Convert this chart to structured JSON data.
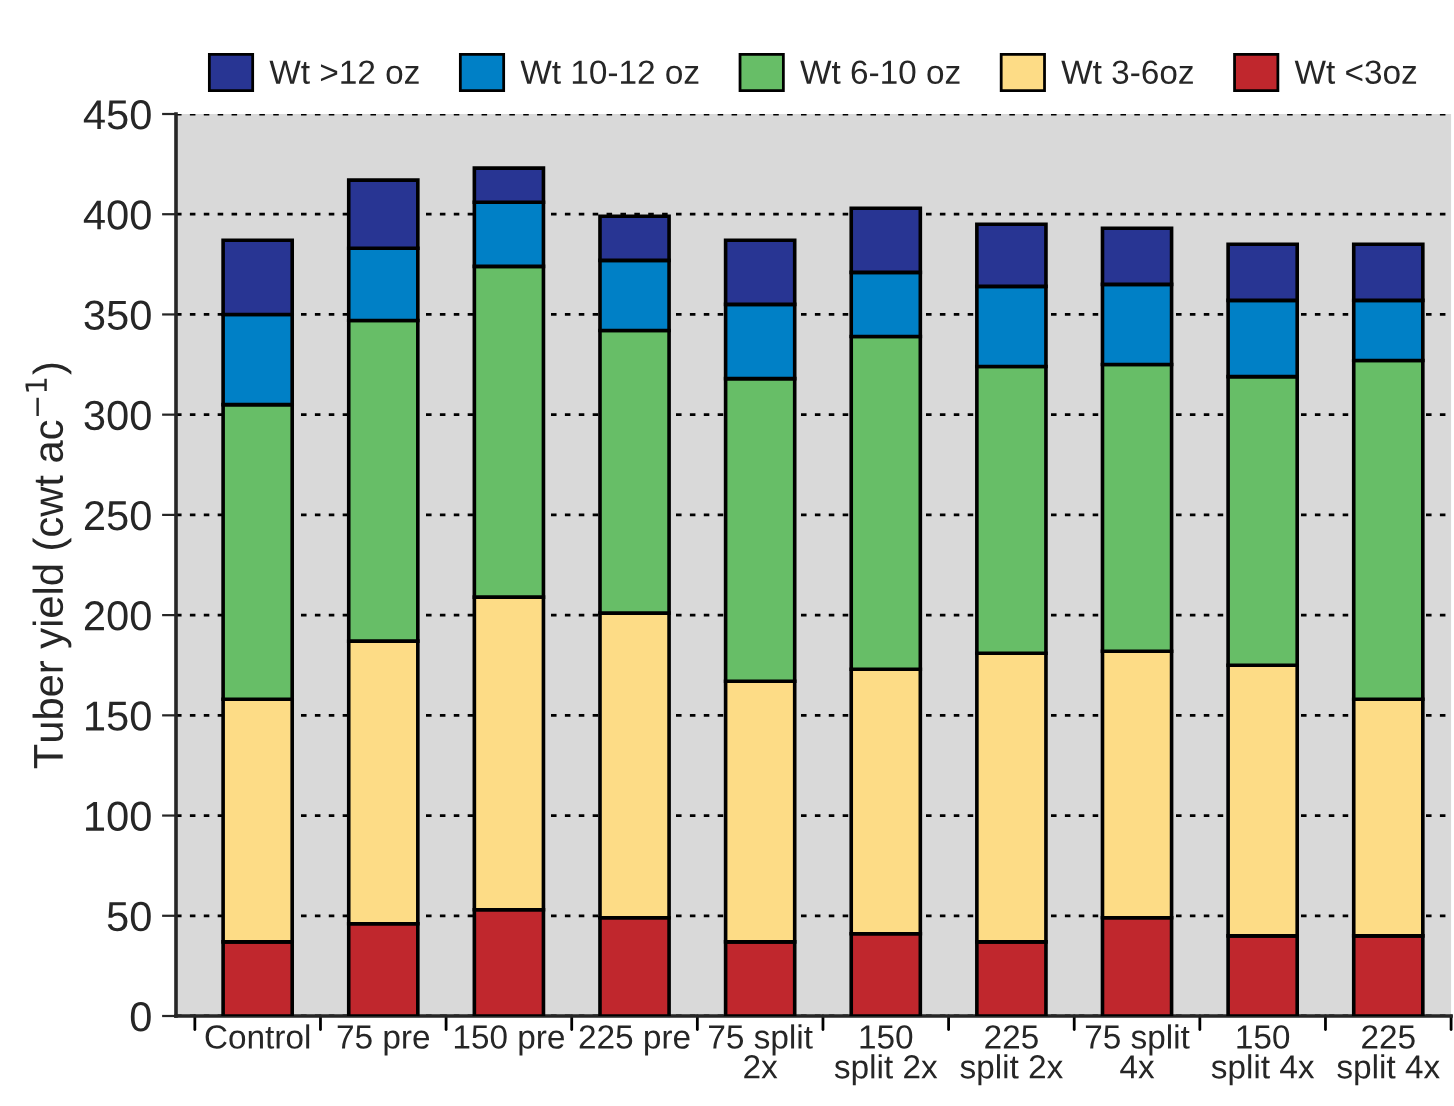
{
  "chart_data": {
    "type": "bar",
    "stacked": true,
    "ylabel": "Tuber yield (cwt ac$^{−1}$)",
    "categories": [
      "Control",
      "75 pre",
      "150 pre",
      "225 pre",
      "75 split\n2x",
      "150\nsplit 2x",
      "225\nsplit 2x",
      "75 split\n4x",
      "150\nsplit 4x",
      "225\nsplit 4x"
    ],
    "series": [
      {
        "name": "Wt <3oz",
        "color": "#c0272d",
        "values": [
          37,
          46,
          53,
          49,
          37,
          41,
          37,
          49,
          40,
          40
        ]
      },
      {
        "name": "Wt 3-6oz",
        "color": "#fddc86",
        "values": [
          121,
          141,
          156,
          152,
          130,
          132,
          144,
          133,
          135,
          118
        ]
      },
      {
        "name": "Wt 6-10 oz",
        "color": "#67be67",
        "values": [
          147,
          160,
          165,
          141,
          151,
          166,
          143,
          143,
          144,
          169
        ]
      },
      {
        "name": "Wt 10-12 oz",
        "color": "#0080c6",
        "values": [
          45,
          36,
          32,
          35,
          37,
          32,
          40,
          40,
          38,
          30
        ]
      },
      {
        "name": "Wt >12 oz",
        "color": "#283593",
        "values": [
          37,
          34,
          17,
          22,
          32,
          32,
          31,
          28,
          28,
          28
        ]
      }
    ],
    "ylim": [
      0,
      450
    ],
    "yticks": [
      0,
      50,
      100,
      150,
      200,
      250,
      300,
      350,
      400,
      450
    ],
    "grid": "y",
    "legend": "top"
  }
}
